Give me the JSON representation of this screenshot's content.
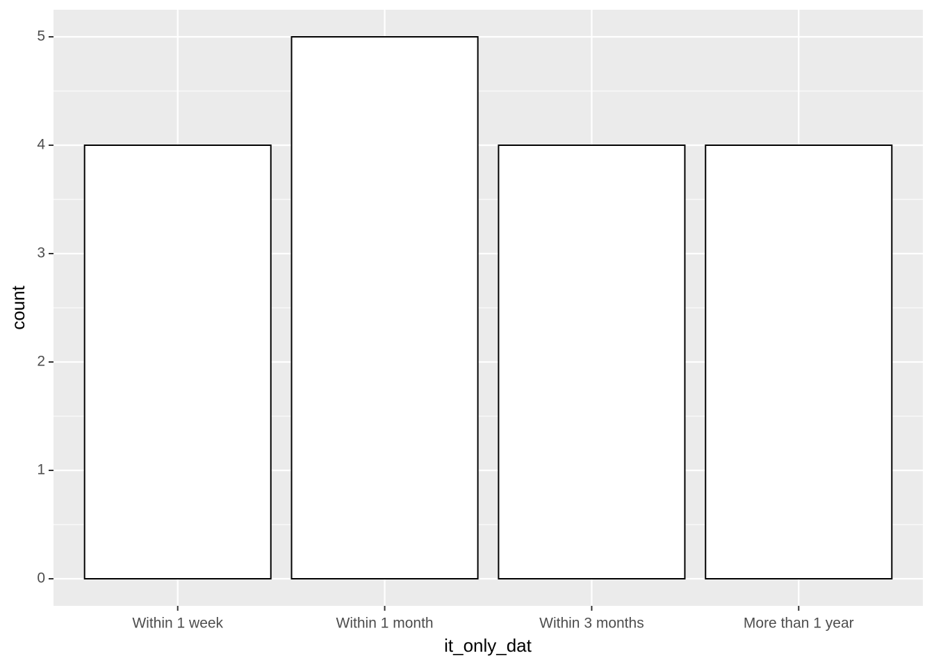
{
  "chart_data": {
    "type": "bar",
    "x_label": "it_only_dat",
    "y_label": "count",
    "categories": [
      "Within 1 week",
      "Within 1 month",
      "Within 3 months",
      "More than 1 year"
    ],
    "values": [
      4,
      5,
      4,
      4
    ],
    "color": "#ffffff",
    "edge_color": "#000000",
    "background": "#ebebeb",
    "ylim": [
      -0.25,
      5.25
    ],
    "yticks": [
      0,
      1,
      2,
      3,
      4,
      5
    ],
    "grid": true
  }
}
